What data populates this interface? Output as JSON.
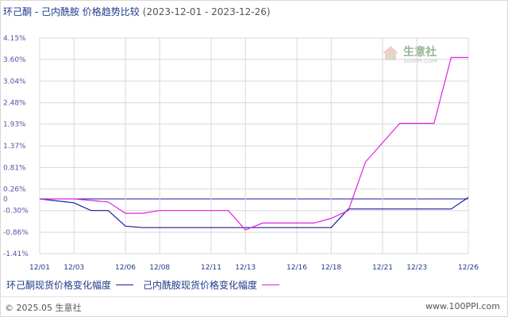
{
  "header": {
    "title": "环己酮 - 己内酰胺 价格趋势比较",
    "date_range": "(2023-12-01 - 2023-12-26)"
  },
  "watermark": {
    "brand": "生意社",
    "domain": "100PPI.COM"
  },
  "footer": {
    "copyright": "© 2025.05 生意社",
    "url": "www.100PPI.com"
  },
  "colors": {
    "series_1": "#1a1a9e",
    "series_2": "#e020e0",
    "grid": "#d8d8d8",
    "zero_line": "#1a1a9e"
  },
  "chart_data": {
    "type": "line",
    "title": "环己酮 - 己内酰胺 价格趋势比较",
    "x_tick_labels": [
      "12/01",
      "12/03",
      "12/06",
      "12/08",
      "12/11",
      "12/13",
      "12/16",
      "12/18",
      "12/21",
      "12/23",
      "12/26"
    ],
    "y_tick_labels": [
      "4.15%",
      "3.60%",
      "3.04%",
      "2.48%",
      "1.93%",
      "1.37%",
      "0.81%",
      "0.26%",
      "0",
      "-0.30%",
      "-0.86%",
      "-1.41%"
    ],
    "ylim": [
      -1.41,
      4.15
    ],
    "grid": true,
    "legend_position": "bottom-left",
    "series": [
      {
        "name": "环己酮现货价格变化幅度",
        "color": "#1a1a9e",
        "points": [
          [
            "12/01",
            0.0
          ],
          [
            "12/03",
            -0.1
          ],
          [
            "12/04",
            -0.3
          ],
          [
            "12/05",
            -0.3
          ],
          [
            "12/06",
            -0.7
          ],
          [
            "12/07",
            -0.74
          ],
          [
            "12/18",
            -0.74
          ],
          [
            "12/19",
            -0.26
          ],
          [
            "12/25",
            -0.26
          ],
          [
            "12/26",
            0.04
          ]
        ]
      },
      {
        "name": "己内酰胺现货价格变化幅度",
        "color": "#e020e0",
        "points": [
          [
            "12/01",
            0.0
          ],
          [
            "12/03",
            0.0
          ],
          [
            "12/05",
            -0.08
          ],
          [
            "12/06",
            -0.37
          ],
          [
            "12/07",
            -0.37
          ],
          [
            "12/08",
            -0.3
          ],
          [
            "12/12",
            -0.3
          ],
          [
            "12/13",
            -0.8
          ],
          [
            "12/14",
            -0.62
          ],
          [
            "12/17",
            -0.62
          ],
          [
            "12/18",
            -0.5
          ],
          [
            "12/19",
            -0.3
          ],
          [
            "12/20",
            0.95
          ],
          [
            "12/22",
            1.95
          ],
          [
            "12/24",
            1.95
          ],
          [
            "12/25",
            3.65
          ],
          [
            "12/26",
            3.65
          ]
        ]
      }
    ]
  }
}
